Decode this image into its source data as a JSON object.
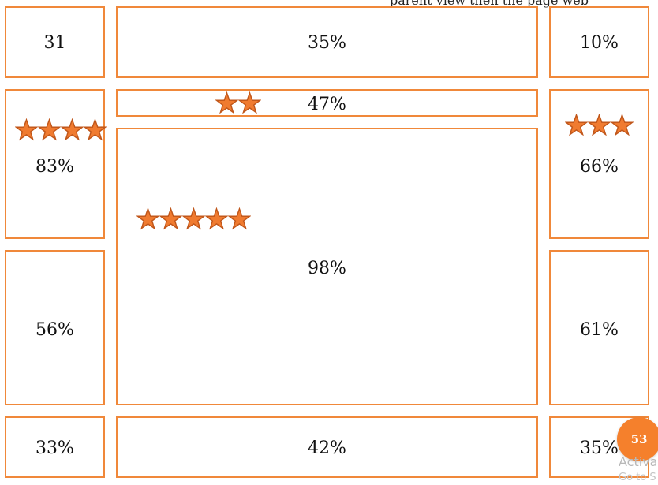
{
  "top_partial_text": "parent view then the page web",
  "cells": {
    "r1_left": "31",
    "r1_center": "35%",
    "r1_right": "10%",
    "r2_center_strip": "47%",
    "r2_left": "83%",
    "r2_right": "66%",
    "big_center": "98%",
    "r3_left": "56%",
    "r3_right": "61%",
    "r4_left": "33%",
    "r4_center": "42%",
    "r4_right": "35%"
  },
  "ratings": {
    "strip": 2,
    "left": 4,
    "right": 3,
    "big": 5
  },
  "page_number": "53",
  "watermark": {
    "line1": "Activa",
    "line2": "Go to S"
  },
  "colors": {
    "accent": "#f0883a",
    "star_fill": "#f07b30",
    "star_stroke": "#c0561a",
    "badge": "#f5802c"
  }
}
